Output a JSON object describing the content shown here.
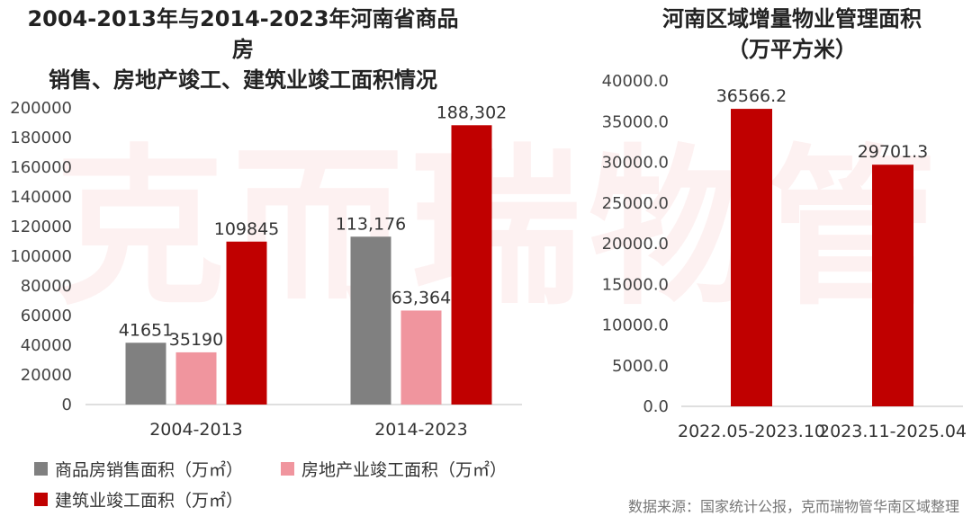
{
  "watermark": "克而瑞物管",
  "chart_data": [
    {
      "type": "bar",
      "title": "2004-2013年与2014-2023年河南省商品房销售、房地产竣工、建筑业竣工面积情况",
      "title_lines": [
        "2004-2013年与2014-2023年河南省商品房",
        "销售、房地产竣工、建筑业竣工面积情况"
      ],
      "categories": [
        "2004-2013",
        "2014-2023"
      ],
      "ylim": [
        0,
        200000
      ],
      "yticks": [
        "0",
        "20000",
        "40000",
        "60000",
        "80000",
        "100000",
        "120000",
        "140000",
        "160000",
        "180000",
        "200000"
      ],
      "grid": false,
      "legend_position": "bottom",
      "series": [
        {
          "name": "商品房销售面积（万㎡）",
          "color": "#808080",
          "values": [
            41651,
            113176
          ],
          "labels": [
            "41651",
            "113,176"
          ]
        },
        {
          "name": "房地产业竣工面积（万㎡）",
          "color": "#F0959E",
          "values": [
            35190,
            63364
          ],
          "labels": [
            "35190",
            "63,364"
          ]
        },
        {
          "name": "建筑业竣工面积（万㎡）",
          "color": "#C00000",
          "values": [
            109845,
            188302
          ],
          "labels": [
            "109845",
            "188,302"
          ]
        }
      ]
    },
    {
      "type": "bar",
      "title": "河南区域增量物业管理面积（万平方米）",
      "title_lines": [
        "河南区域增量物业管理面积",
        "（万平方米）"
      ],
      "categories": [
        "2022.05-2023.10",
        "2023.11-2025.04"
      ],
      "ylim": [
        0,
        40000
      ],
      "yticks": [
        "0.0",
        "5000.0",
        "10000.0",
        "15000.0",
        "20000.0",
        "25000.0",
        "30000.0",
        "35000.0",
        "40000.0"
      ],
      "grid": false,
      "series": [
        {
          "color": "#C00000",
          "values": [
            36566.2,
            29701.3
          ],
          "labels": [
            "36566.2",
            "29701.3"
          ]
        }
      ]
    }
  ],
  "source": "数据来源：国家统计公报，克而瑞物管华南区域整理"
}
